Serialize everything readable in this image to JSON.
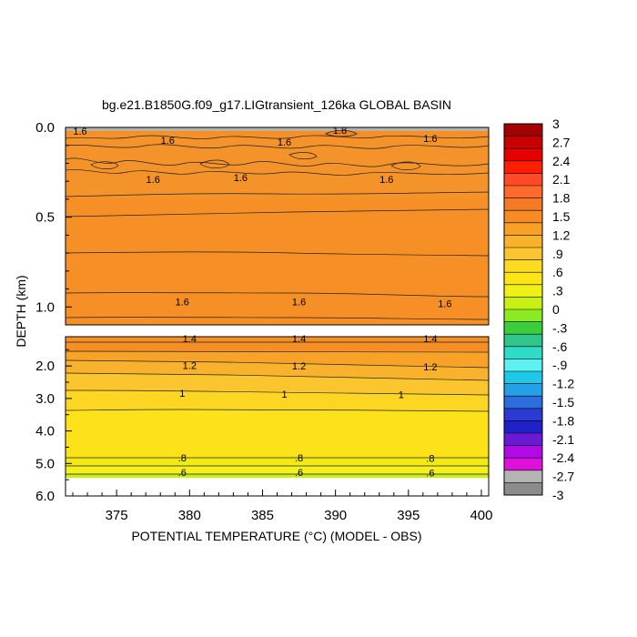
{
  "chart_data": {
    "type": "heatmap",
    "title": "bg.e21.B1850G.f09_g17.LIGtransient_126ka GLOBAL BASIN",
    "xlabel": "POTENTIAL TEMPERATURE (°C) (MODEL - OBS)",
    "ylabel": "DEPTH (km)",
    "xlim": [
      371.5,
      400.5
    ],
    "x_ticks": [
      "375",
      "380",
      "385",
      "390",
      "395",
      "400"
    ],
    "y_ticks_upper": [
      "0.0",
      "0.5",
      "1.0"
    ],
    "y_ticks_lower": [
      "2.0",
      "3.0",
      "4.0",
      "5.0",
      "6.0"
    ],
    "ylim_upper": [
      0.0,
      1.1
    ],
    "ylim_lower": [
      1.1,
      6.0
    ],
    "colorbar": {
      "labels": [
        "3",
        "2.7",
        "2.4",
        "2.1",
        "1.8",
        "1.5",
        "1.2",
        ".9",
        ".6",
        ".3",
        "0",
        "-.3",
        "-.6",
        "-.9",
        "-1.2",
        "-1.5",
        "-1.8",
        "-2.1",
        "-2.4",
        "-2.7",
        "-3"
      ],
      "colors": [
        "#a50000",
        "#c80000",
        "#e60000",
        "#ff1e00",
        "#ff4a28",
        "#ff6a2a",
        "#f47a26",
        "#f78c27",
        "#f8a028",
        "#f9b22c",
        "#fbc52e",
        "#fddb21",
        "#fce517",
        "#f1f015",
        "#c8f014",
        "#8cea24",
        "#3ccd3c",
        "#32c58a",
        "#2edcc8",
        "#5cf0f0",
        "#1ec8e6",
        "#24a0e6",
        "#2c6edc",
        "#2a3ad2",
        "#2020c8",
        "#6a1ad6",
        "#b20ae6",
        "#e010dc",
        "#b4b4b4",
        "#8c8c8c"
      ]
    },
    "contours": [
      {
        "label": "1.6",
        "panel": "upper",
        "labels_at": [
          [
            372.5,
            0.02
          ],
          [
            378.5,
            0.07
          ],
          [
            386.5,
            0.08
          ],
          [
            396.5,
            0.06
          ]
        ]
      },
      {
        "label": "1.8",
        "panel": "upper",
        "labels_at": [
          [
            390.3,
            0.015
          ]
        ]
      },
      {
        "label": "1.6",
        "panel": "upper",
        "labels_at": [
          [
            377.5,
            0.29
          ],
          [
            383.5,
            0.28
          ],
          [
            393.5,
            0.29
          ]
        ]
      },
      {
        "label": "1.6",
        "panel": "upper",
        "labels_at": [
          [
            379.5,
            0.97
          ],
          [
            387.5,
            0.97
          ],
          [
            397.5,
            0.98
          ]
        ]
      },
      {
        "label": "1.4",
        "panel": "lower",
        "labels_at": [
          [
            380.0,
            1.16
          ],
          [
            387.5,
            1.16
          ],
          [
            396.5,
            1.16
          ]
        ]
      },
      {
        "label": "1.2",
        "panel": "lower",
        "labels_at": [
          [
            380.0,
            1.98
          ],
          [
            387.5,
            2.0
          ],
          [
            396.5,
            2.02
          ]
        ]
      },
      {
        "label": "1",
        "panel": "lower",
        "labels_at": [
          [
            379.5,
            2.84
          ],
          [
            386.5,
            2.86
          ],
          [
            394.5,
            2.88
          ]
        ]
      },
      {
        "label": ".8",
        "panel": "lower",
        "labels_at": [
          [
            379.5,
            4.82
          ],
          [
            387.5,
            4.82
          ],
          [
            396.5,
            4.84
          ]
        ]
      },
      {
        "label": ".6",
        "panel": "lower",
        "labels_at": [
          [
            379.5,
            5.27
          ],
          [
            387.5,
            5.27
          ],
          [
            396.5,
            5.28
          ]
        ]
      }
    ]
  }
}
